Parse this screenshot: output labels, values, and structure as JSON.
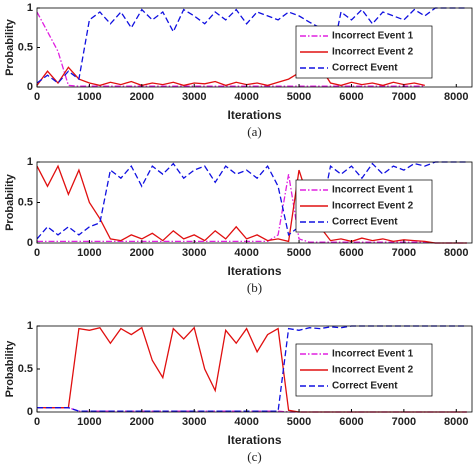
{
  "chart_data": [
    {
      "type": "line",
      "caption": "(a)",
      "xlabel": "Iterations",
      "ylabel": "Probability",
      "xlim": [
        0,
        8300
      ],
      "ylim": [
        0,
        1
      ],
      "xticks": [
        0,
        1000,
        2000,
        3000,
        4000,
        5000,
        6000,
        7000,
        8000
      ],
      "yticks": [
        0,
        0.5,
        1
      ],
      "x": [
        0,
        200,
        400,
        600,
        800,
        1000,
        1200,
        1400,
        1600,
        1800,
        2000,
        2200,
        2400,
        2600,
        2800,
        3000,
        3200,
        3400,
        3600,
        3800,
        4000,
        4200,
        4400,
        4600,
        4800,
        5000,
        5200,
        5400,
        5600,
        5800,
        6000,
        6200,
        6400,
        6600,
        6800,
        7000,
        7200,
        7400,
        7600,
        7800,
        8000,
        8200
      ],
      "series": [
        {
          "name": "Incorrect Event 1",
          "color": "#e020e0",
          "dash": "dashdot",
          "values": [
            0.95,
            0.7,
            0.45,
            0.02,
            0.01,
            0.01,
            0.01,
            0.01,
            0.01,
            0.01,
            0.01,
            0.01,
            0.01,
            0.01,
            0.01,
            0.01,
            0.01,
            0.01,
            0.01,
            0.01,
            0.01,
            0.01,
            0.01,
            0.01,
            0.01,
            0.01,
            0.01,
            0.01,
            0.01,
            0.01,
            0.01,
            0.01,
            0.01,
            0.01,
            0.01,
            0.01,
            0.01,
            0.01,
            null,
            null,
            null,
            null
          ]
        },
        {
          "name": "Incorrect Event 2",
          "color": "#e01010",
          "dash": "solid",
          "values": [
            0.02,
            0.2,
            0.05,
            0.25,
            0.1,
            0.05,
            0.02,
            0.06,
            0.03,
            0.07,
            0.02,
            0.05,
            0.03,
            0.06,
            0.02,
            0.05,
            0.04,
            0.07,
            0.02,
            0.06,
            0.03,
            0.05,
            0.02,
            0.06,
            0.1,
            0.18,
            0.22,
            0.26,
            0.05,
            0.02,
            0.06,
            0.03,
            0.05,
            0.02,
            0.06,
            0.03,
            0.05,
            0.02,
            null,
            null,
            null,
            null
          ]
        },
        {
          "name": "Correct Event",
          "color": "#1010e0",
          "dash": "dashed",
          "values": [
            0.05,
            0.15,
            0.05,
            0.2,
            0.1,
            0.85,
            0.95,
            0.8,
            0.95,
            0.75,
            0.98,
            0.85,
            0.95,
            0.7,
            0.98,
            0.9,
            0.8,
            0.95,
            0.85,
            0.98,
            0.8,
            0.95,
            0.9,
            0.85,
            0.95,
            0.9,
            0.82,
            0.75,
            0.3,
            0.95,
            0.85,
            0.98,
            0.8,
            0.95,
            0.9,
            0.85,
            0.98,
            0.9,
            1,
            1,
            1,
            1
          ]
        }
      ]
    },
    {
      "type": "line",
      "caption": "(b)",
      "xlabel": "Iterations",
      "ylabel": "Probability",
      "xlim": [
        0,
        8300
      ],
      "ylim": [
        0,
        1
      ],
      "xticks": [
        0,
        1000,
        2000,
        3000,
        4000,
        5000,
        6000,
        7000,
        8000
      ],
      "yticks": [
        0,
        0.5,
        1
      ],
      "x": [
        0,
        200,
        400,
        600,
        800,
        1000,
        1200,
        1400,
        1600,
        1800,
        2000,
        2200,
        2400,
        2600,
        2800,
        3000,
        3200,
        3400,
        3600,
        3800,
        4000,
        4200,
        4400,
        4600,
        4800,
        5000,
        5200,
        5400,
        5600,
        5800,
        6000,
        6200,
        6400,
        6600,
        6800,
        7000,
        7200,
        7400,
        7600,
        7800,
        8000,
        8200
      ],
      "series": [
        {
          "name": "Incorrect Event 1",
          "color": "#e020e0",
          "dash": "dashdot",
          "values": [
            0.02,
            0.02,
            0.02,
            0.02,
            0.02,
            0.02,
            0.02,
            0.02,
            0.02,
            0.02,
            0.02,
            0.02,
            0.02,
            0.02,
            0.02,
            0.02,
            0.02,
            0.02,
            0.02,
            0.02,
            0.02,
            0.02,
            0.02,
            0.1,
            0.85,
            0.05,
            0.01,
            0.01,
            0.01,
            0.01,
            0.01,
            0.01,
            0.01,
            0.01,
            0.01,
            0.01,
            0.01,
            0.01,
            0,
            0,
            0,
            0
          ]
        },
        {
          "name": "Incorrect Event 2",
          "color": "#e01010",
          "dash": "solid",
          "values": [
            0.95,
            0.7,
            0.95,
            0.6,
            0.9,
            0.5,
            0.3,
            0.05,
            0.03,
            0.1,
            0.05,
            0.12,
            0.03,
            0.15,
            0.05,
            0.1,
            0.03,
            0.15,
            0.05,
            0.2,
            0.05,
            0.1,
            0.03,
            0.05,
            0.02,
            0.9,
            0.5,
            0.2,
            0.03,
            0.05,
            0.02,
            0.06,
            0.03,
            0.05,
            0.02,
            0.04,
            0.03,
            0.02,
            0,
            0,
            0,
            0
          ]
        },
        {
          "name": "Correct Event",
          "color": "#1010e0",
          "dash": "dashed",
          "values": [
            0.05,
            0.2,
            0.1,
            0.2,
            0.1,
            0.2,
            0.25,
            0.9,
            0.8,
            0.95,
            0.7,
            0.95,
            0.85,
            0.98,
            0.8,
            0.9,
            0.95,
            0.75,
            0.95,
            0.85,
            0.9,
            0.8,
            0.95,
            0.7,
            0.1,
            0.2,
            0.4,
            0.3,
            0.95,
            0.85,
            0.95,
            0.8,
            0.98,
            0.85,
            0.95,
            0.9,
            0.98,
            0.95,
            1,
            1,
            1,
            1
          ]
        }
      ]
    },
    {
      "type": "line",
      "caption": "(c)",
      "xlabel": "Iterations",
      "ylabel": "Probability",
      "xlim": [
        0,
        8300
      ],
      "ylim": [
        0,
        1
      ],
      "xticks": [
        0,
        1000,
        2000,
        3000,
        4000,
        5000,
        6000,
        7000,
        8000
      ],
      "yticks": [
        0,
        0.5,
        1
      ],
      "x": [
        0,
        200,
        400,
        600,
        800,
        1000,
        1200,
        1400,
        1600,
        1800,
        2000,
        2200,
        2400,
        2600,
        2800,
        3000,
        3200,
        3400,
        3600,
        3800,
        4000,
        4200,
        4400,
        4600,
        4800,
        5000,
        5200,
        5400,
        5600,
        5800,
        6000,
        6200,
        6400,
        6600,
        6800,
        7000,
        7200,
        7400,
        7600,
        7800,
        8000,
        8200
      ],
      "series": [
        {
          "name": "Incorrect Event 1",
          "color": "#e020e0",
          "dash": "dashdot",
          "values": [
            0.05,
            0.05,
            0.05,
            0.05,
            0.01,
            0.01,
            0.01,
            0.01,
            0.01,
            0.01,
            0.01,
            0.01,
            0.01,
            0.01,
            0.01,
            0.01,
            0.01,
            0.01,
            0.01,
            0.01,
            0.01,
            0.01,
            0.01,
            0.01,
            0,
            0,
            0,
            0,
            0,
            0,
            0,
            0,
            0,
            0,
            0,
            0,
            0,
            0,
            0,
            0,
            0,
            0
          ]
        },
        {
          "name": "Incorrect Event 2",
          "color": "#e01010",
          "dash": "solid",
          "values": [
            0.05,
            0.05,
            0.05,
            0.05,
            0.97,
            0.95,
            0.98,
            0.8,
            0.97,
            0.9,
            0.98,
            0.6,
            0.4,
            0.97,
            0.85,
            0.98,
            0.5,
            0.25,
            0.95,
            0.8,
            0.97,
            0.7,
            0.9,
            0.97,
            0.02,
            0,
            0,
            0,
            0,
            0,
            0,
            0,
            0,
            0,
            0,
            0,
            0,
            0,
            0,
            0,
            0,
            0
          ]
        },
        {
          "name": "Correct Event",
          "color": "#1010e0",
          "dash": "dashed",
          "values": [
            0.05,
            0.05,
            0.05,
            0.05,
            0.01,
            0.01,
            0.01,
            0.01,
            0.01,
            0.01,
            0.01,
            0.01,
            0.01,
            0.01,
            0.01,
            0.01,
            0.01,
            0.01,
            0.01,
            0.01,
            0.01,
            0.01,
            0.01,
            0.01,
            0.97,
            0.95,
            0.98,
            0.97,
            0.99,
            0.98,
            1,
            1,
            1,
            1,
            1,
            1,
            1,
            1,
            1,
            1,
            1,
            1
          ]
        }
      ]
    }
  ]
}
